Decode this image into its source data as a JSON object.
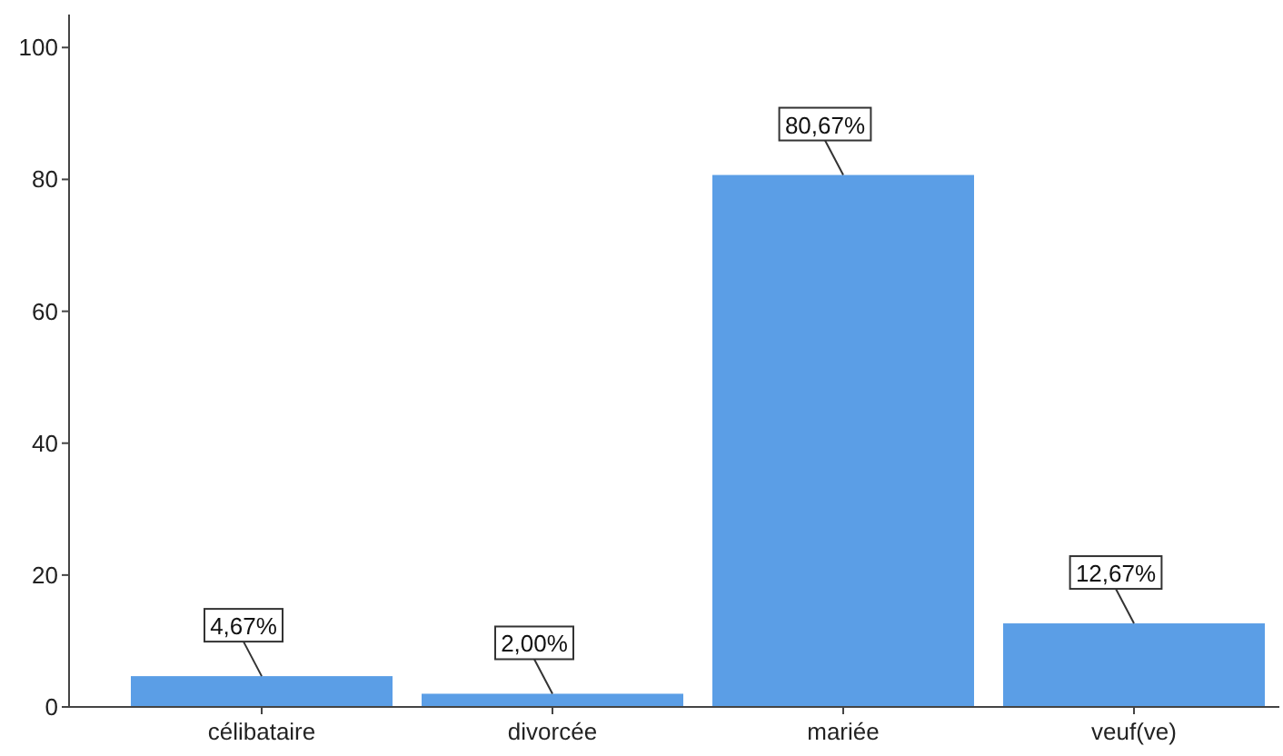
{
  "chart_data": {
    "type": "bar",
    "categories": [
      "célibataire",
      "divorcée",
      "mariée",
      "veuf(ve)"
    ],
    "values": [
      4.67,
      2.0,
      80.67,
      12.67
    ],
    "color": "#5b9ee6",
    "value_labels": [
      "4,67%",
      "2,00%",
      "80,67%",
      "12,67%"
    ],
    "ylim": [
      0,
      105
    ],
    "yticks": [
      0,
      20,
      40,
      60,
      80,
      100
    ],
    "grid": false
  }
}
